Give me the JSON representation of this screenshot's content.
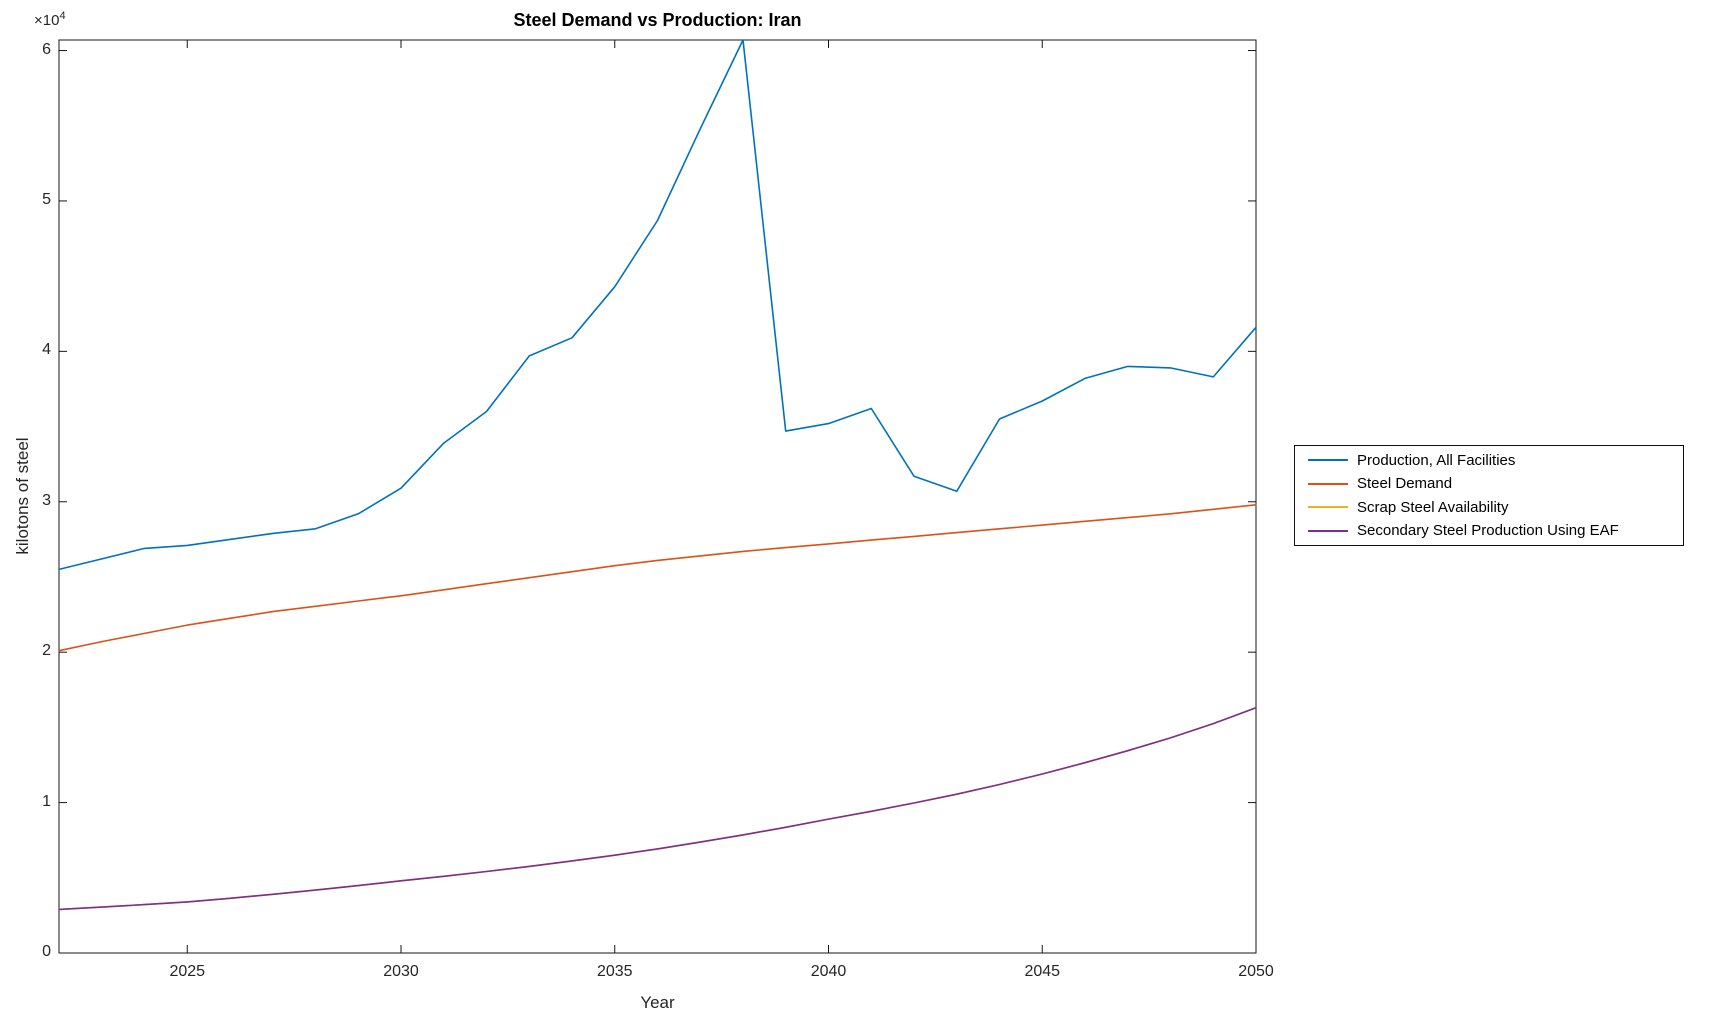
{
  "figure": {
    "background": "#ffffff",
    "axis_color": "#151515",
    "tick_label_color": "#262626"
  },
  "chart_data": {
    "type": "line",
    "title": "Steel Demand vs Production: Iran",
    "xlabel": "Year",
    "ylabel": "kilotons of steel",
    "y_axis_multiplier_base": "×10",
    "y_axis_multiplier_exponent": "4",
    "xlim": [
      2022,
      2050
    ],
    "ylim": [
      0,
      60700
    ],
    "grid": false,
    "legend_position": "outside-right",
    "x_ticks": [
      "2025",
      "2030",
      "2035",
      "2040",
      "2045",
      "2050"
    ],
    "x_tick_values": [
      2025,
      2030,
      2035,
      2040,
      2045,
      2050
    ],
    "y_ticks": [
      "0",
      "1",
      "2",
      "3",
      "4",
      "5",
      "6"
    ],
    "y_tick_values": [
      0,
      10000,
      20000,
      30000,
      40000,
      50000,
      60000
    ],
    "x": [
      2022,
      2023,
      2024,
      2025,
      2026,
      2027,
      2028,
      2029,
      2030,
      2031,
      2032,
      2033,
      2034,
      2035,
      2036,
      2037,
      2038,
      2039,
      2040,
      2041,
      2042,
      2043,
      2044,
      2045,
      2046,
      2047,
      2048,
      2049,
      2050
    ],
    "series": [
      {
        "name": "Production, All Facilities",
        "color": "#0072BD",
        "values": [
          25500,
          26200,
          26900,
          27100,
          27500,
          27900,
          28200,
          29200,
          30900,
          33900,
          36000,
          39700,
          40900,
          44300,
          48700,
          54800,
          60700,
          34700,
          35200,
          36200,
          31700,
          30700,
          35500,
          36700,
          38200,
          39000,
          38900,
          38300,
          41600
        ]
      },
      {
        "name": "Steel Demand",
        "color": "#D95319",
        "values": [
          20100,
          20700,
          21250,
          21800,
          22250,
          22700,
          23050,
          23400,
          23750,
          24150,
          24550,
          24950,
          25350,
          25750,
          26100,
          26400,
          26700,
          26950,
          27200,
          27450,
          27700,
          27950,
          28200,
          28450,
          28700,
          28950,
          29200,
          29500,
          29800
        ]
      },
      {
        "name": "Scrap Steel Availability",
        "color": "#EDB120",
        "values": [
          2900,
          3050,
          3220,
          3400,
          3640,
          3900,
          4180,
          4480,
          4800,
          5100,
          5420,
          5760,
          6120,
          6500,
          6920,
          7370,
          7850,
          8360,
          8900,
          9420,
          9970,
          10560,
          11200,
          11900,
          12650,
          13450,
          14300,
          15250,
          16300
        ]
      },
      {
        "name": "Secondary Steel Production Using EAF",
        "color": "#7E2F8E",
        "values": [
          2900,
          3050,
          3220,
          3400,
          3640,
          3900,
          4180,
          4480,
          4800,
          5100,
          5420,
          5760,
          6120,
          6500,
          6920,
          7370,
          7850,
          8360,
          8900,
          9420,
          9970,
          10560,
          11200,
          11900,
          12650,
          13450,
          14300,
          15250,
          16300
        ]
      }
    ]
  }
}
